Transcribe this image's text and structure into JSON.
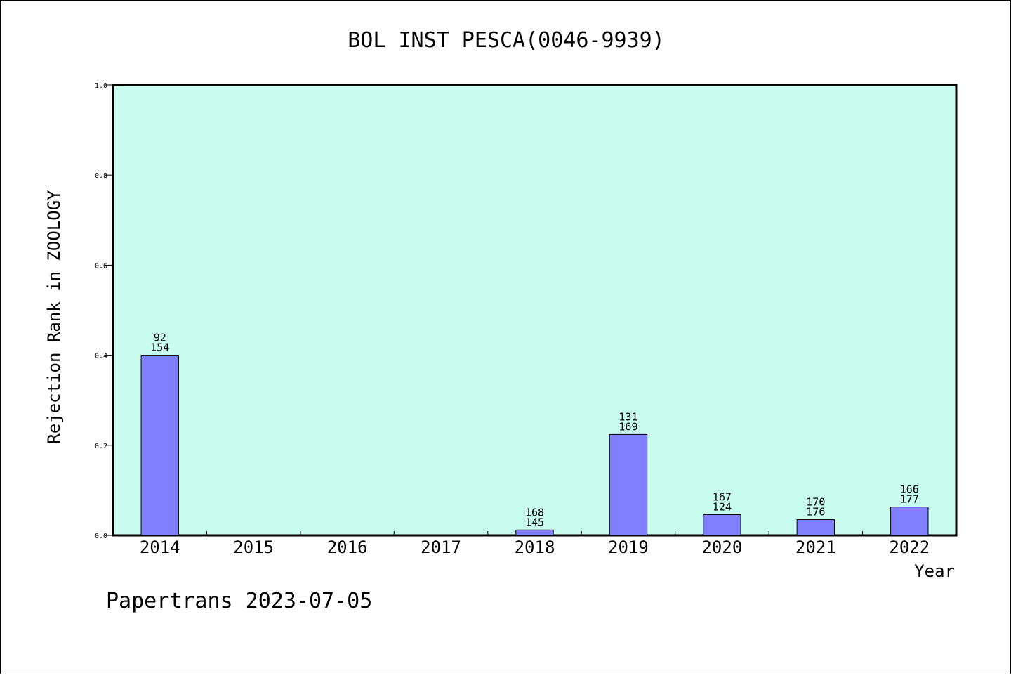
{
  "chart_data": {
    "type": "bar",
    "title": "BOL INST PESCA(0046-9939)",
    "xlabel": "Year",
    "ylabel": "Rejection Rank in ZOOLOGY",
    "ylim": [
      0,
      1.0
    ],
    "yticks": [
      "0.0",
      "0.2",
      "0.4",
      "0.6",
      "0.8",
      "1.0"
    ],
    "ytick_values": [
      0,
      0.2,
      0.4,
      0.6,
      0.8,
      1.0
    ],
    "categories": [
      "2014",
      "2015",
      "2016",
      "2017",
      "2018",
      "2019",
      "2020",
      "2021",
      "2022"
    ],
    "values": [
      0.4,
      0,
      0,
      0,
      0.012,
      0.224,
      0.046,
      0.035,
      0.063
    ],
    "labels_top": [
      "92",
      "",
      "",
      "",
      "168",
      "131",
      "167",
      "170",
      "166"
    ],
    "labels_bottom": [
      "154",
      "",
      "",
      "",
      "145",
      "169",
      "124",
      "176",
      "177"
    ],
    "grid": false,
    "plot_background": "#c8fcee",
    "bar_color": "#8080ff"
  },
  "footer": "Papertrans 2023-07-05"
}
